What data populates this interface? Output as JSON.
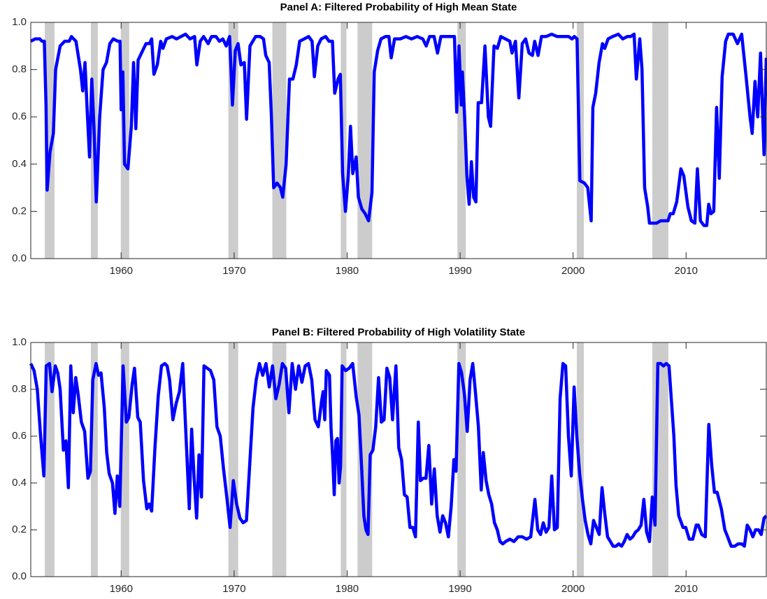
{
  "chart_data": [
    {
      "type": "line",
      "title": "Panel A: Filtered Probability of High Mean State",
      "color": "#0000ff",
      "xlim": [
        1952,
        2017.1
      ],
      "ylim": [
        0,
        1
      ],
      "xticks": [
        1960,
        1970,
        1980,
        1990,
        2000,
        2010
      ],
      "yticks": [
        {
          "value": 0,
          "label": "0.0"
        },
        0.2,
        0.4,
        0.6,
        0.8,
        {
          "value": 1,
          "label": "1.0"
        }
      ],
      "grid": false,
      "shading": {
        "color": "#cccccc",
        "ranges": [
          [
            1953.24,
            1954.1
          ],
          [
            1957.32,
            1957.93
          ],
          [
            1959.97,
            1960.71
          ],
          [
            1969.49,
            1970.36
          ],
          [
            1973.38,
            1974.62
          ],
          [
            1979.44,
            1979.94
          ],
          [
            1980.92,
            1982.22
          ],
          [
            1989.76,
            1990.5
          ],
          [
            2000.33,
            2000.95
          ],
          [
            2007.01,
            2008.43
          ]
        ]
      },
      "x": [
        1952.0,
        1952.4,
        1952.8,
        1953.0,
        1953.2,
        1953.35,
        1953.45,
        1953.7,
        1954.0,
        1954.2,
        1954.6,
        1955.0,
        1955.4,
        1955.6,
        1956.0,
        1956.4,
        1956.6,
        1956.8,
        1957.0,
        1957.2,
        1957.4,
        1957.6,
        1957.8,
        1958.1,
        1958.4,
        1958.7,
        1959.0,
        1959.3,
        1959.7,
        1959.9,
        1960.0,
        1960.15,
        1960.3,
        1960.6,
        1960.9,
        1961.1,
        1961.3,
        1961.5,
        1961.9,
        1962.2,
        1962.5,
        1962.7,
        1962.9,
        1963.2,
        1963.5,
        1963.7,
        1964.0,
        1964.5,
        1964.9,
        1965.3,
        1965.7,
        1966.1,
        1966.5,
        1966.7,
        1967.0,
        1967.3,
        1967.7,
        1968.0,
        1968.4,
        1968.7,
        1969.0,
        1969.3,
        1969.6,
        1969.85,
        1970.1,
        1970.35,
        1970.6,
        1970.9,
        1971.1,
        1971.4,
        1971.9,
        1972.3,
        1972.6,
        1972.8,
        1973.1,
        1973.3,
        1973.5,
        1973.8,
        1974.1,
        1974.3,
        1974.6,
        1974.9,
        1975.2,
        1975.5,
        1975.8,
        1976.2,
        1976.6,
        1976.9,
        1977.1,
        1977.4,
        1977.7,
        1978.1,
        1978.4,
        1978.7,
        1978.9,
        1979.2,
        1979.4,
        1979.6,
        1979.85,
        1980.1,
        1980.3,
        1980.5,
        1980.8,
        1981.0,
        1981.3,
        1981.6,
        1981.9,
        1982.2,
        1982.4,
        1982.7,
        1983.0,
        1983.4,
        1983.7,
        1983.9,
        1984.2,
        1984.7,
        1985.2,
        1985.7,
        1986.2,
        1986.7,
        1987.0,
        1987.3,
        1987.7,
        1988.0,
        1988.3,
        1988.8,
        1989.2,
        1989.5,
        1989.7,
        1989.9,
        1990.1,
        1990.2,
        1990.4,
        1990.6,
        1990.8,
        1991.0,
        1991.2,
        1991.4,
        1991.6,
        1991.9,
        1992.2,
        1992.5,
        1992.7,
        1993.0,
        1993.3,
        1993.6,
        1994.0,
        1994.4,
        1994.6,
        1994.9,
        1995.2,
        1995.5,
        1995.8,
        1996.1,
        1996.4,
        1996.6,
        1996.9,
        1997.2,
        1997.6,
        1998.1,
        1998.6,
        1999.1,
        1999.6,
        1999.9,
        2000.1,
        2000.35,
        2000.6,
        2001.0,
        2001.3,
        2001.6,
        2001.75,
        2002.0,
        2002.3,
        2002.6,
        2002.8,
        2003.1,
        2003.5,
        2004.0,
        2004.4,
        2004.8,
        2005.1,
        2005.4,
        2005.6,
        2005.9,
        2006.1,
        2006.33,
        2006.6,
        2006.76,
        2007.07,
        2007.38,
        2007.75,
        2008.1,
        2008.4,
        2008.6,
        2008.86,
        2009.17,
        2009.54,
        2009.8,
        2010.16,
        2010.47,
        2010.78,
        2011.0,
        2011.27,
        2011.58,
        2011.83,
        2012.0,
        2012.2,
        2012.45,
        2012.7,
        2012.94,
        2013.19,
        2013.5,
        2013.74,
        2014.17,
        2014.55,
        2014.92,
        2015.29,
        2015.66,
        2015.85,
        2016.1,
        2016.34,
        2016.59,
        2016.9,
        2017.1
      ],
      "values": [
        0.92,
        0.93,
        0.93,
        0.92,
        0.92,
        0.65,
        0.29,
        0.45,
        0.53,
        0.8,
        0.9,
        0.92,
        0.92,
        0.94,
        0.92,
        0.8,
        0.71,
        0.83,
        0.62,
        0.43,
        0.76,
        0.55,
        0.24,
        0.6,
        0.8,
        0.83,
        0.91,
        0.93,
        0.92,
        0.92,
        0.63,
        0.79,
        0.4,
        0.38,
        0.56,
        0.83,
        0.55,
        0.84,
        0.88,
        0.91,
        0.91,
        0.93,
        0.78,
        0.82,
        0.92,
        0.89,
        0.93,
        0.94,
        0.93,
        0.94,
        0.95,
        0.93,
        0.94,
        0.82,
        0.92,
        0.94,
        0.91,
        0.94,
        0.94,
        0.92,
        0.93,
        0.9,
        0.94,
        0.65,
        0.88,
        0.91,
        0.82,
        0.83,
        0.59,
        0.9,
        0.94,
        0.94,
        0.93,
        0.86,
        0.83,
        0.6,
        0.3,
        0.32,
        0.3,
        0.26,
        0.4,
        0.76,
        0.76,
        0.82,
        0.92,
        0.93,
        0.94,
        0.92,
        0.77,
        0.9,
        0.93,
        0.94,
        0.92,
        0.92,
        0.7,
        0.76,
        0.78,
        0.36,
        0.2,
        0.35,
        0.56,
        0.36,
        0.43,
        0.26,
        0.21,
        0.19,
        0.16,
        0.28,
        0.79,
        0.88,
        0.93,
        0.94,
        0.94,
        0.85,
        0.93,
        0.93,
        0.94,
        0.93,
        0.94,
        0.93,
        0.9,
        0.94,
        0.94,
        0.87,
        0.94,
        0.94,
        0.94,
        0.94,
        0.62,
        0.9,
        0.65,
        0.79,
        0.6,
        0.35,
        0.23,
        0.41,
        0.26,
        0.24,
        0.66,
        0.66,
        0.9,
        0.6,
        0.56,
        0.9,
        0.89,
        0.94,
        0.93,
        0.92,
        0.87,
        0.92,
        0.68,
        0.91,
        0.93,
        0.87,
        0.86,
        0.92,
        0.86,
        0.94,
        0.94,
        0.95,
        0.94,
        0.94,
        0.94,
        0.93,
        0.94,
        0.93,
        0.33,
        0.32,
        0.3,
        0.16,
        0.64,
        0.7,
        0.83,
        0.91,
        0.89,
        0.93,
        0.94,
        0.95,
        0.93,
        0.94,
        0.94,
        0.95,
        0.76,
        0.93,
        0.8,
        0.3,
        0.22,
        0.15,
        0.15,
        0.15,
        0.16,
        0.16,
        0.16,
        0.19,
        0.19,
        0.24,
        0.38,
        0.35,
        0.22,
        0.16,
        0.15,
        0.38,
        0.16,
        0.14,
        0.14,
        0.23,
        0.19,
        0.2,
        0.64,
        0.34,
        0.77,
        0.92,
        0.95,
        0.95,
        0.91,
        0.95,
        0.78,
        0.6,
        0.53,
        0.75,
        0.6,
        0.87,
        0.44,
        0.85
      ]
    },
    {
      "type": "line",
      "title": "Panel B: Filtered Probability of High Volatility State",
      "color": "#0000ff",
      "xlim": [
        1952,
        2017.1
      ],
      "ylim": [
        0,
        1
      ],
      "xticks": [
        1960,
        1970,
        1980,
        1990,
        2000,
        2010
      ],
      "yticks": [
        {
          "value": 0,
          "label": "0.0"
        },
        0.2,
        0.4,
        0.6,
        0.8,
        {
          "value": 1,
          "label": "1.0"
        }
      ],
      "grid": false,
      "shading": {
        "color": "#cccccc",
        "ranges": [
          [
            1953.24,
            1954.1
          ],
          [
            1957.32,
            1957.93
          ],
          [
            1959.97,
            1960.71
          ],
          [
            1969.49,
            1970.36
          ],
          [
            1973.38,
            1974.62
          ],
          [
            1979.44,
            1979.94
          ],
          [
            1980.92,
            1982.22
          ],
          [
            1989.76,
            1990.5
          ],
          [
            2000.33,
            2000.95
          ],
          [
            2007.01,
            2008.43
          ]
        ]
      },
      "x": [
        1952.0,
        1952.29,
        1952.58,
        1952.87,
        1953.16,
        1953.37,
        1953.66,
        1953.88,
        1954.17,
        1954.39,
        1954.6,
        1954.89,
        1955.11,
        1955.33,
        1955.54,
        1955.76,
        1955.98,
        1956.19,
        1956.48,
        1956.77,
        1957.06,
        1957.28,
        1957.49,
        1957.78,
        1958.0,
        1958.22,
        1958.51,
        1958.72,
        1958.94,
        1959.23,
        1959.45,
        1959.66,
        1959.88,
        1960.17,
        1960.46,
        1960.68,
        1960.97,
        1961.18,
        1961.47,
        1961.69,
        1961.98,
        1962.27,
        1962.48,
        1962.7,
        1962.99,
        1963.28,
        1963.57,
        1963.86,
        1964.07,
        1964.29,
        1964.58,
        1964.87,
        1965.16,
        1965.45,
        1965.74,
        1966.03,
        1966.24,
        1966.46,
        1966.68,
        1966.89,
        1967.11,
        1967.33,
        1967.62,
        1967.91,
        1968.2,
        1968.48,
        1968.77,
        1969.06,
        1969.35,
        1969.64,
        1969.93,
        1970.22,
        1970.51,
        1970.8,
        1971.09,
        1971.38,
        1971.67,
        1971.95,
        1972.24,
        1972.53,
        1972.82,
        1973.11,
        1973.4,
        1973.69,
        1973.98,
        1974.27,
        1974.56,
        1974.85,
        1975.14,
        1975.43,
        1975.71,
        1976.0,
        1976.29,
        1976.58,
        1976.87,
        1977.16,
        1977.45,
        1977.74,
        1977.88,
        1978.02,
        1978.16,
        1978.3,
        1978.44,
        1978.58,
        1978.72,
        1978.86,
        1979.0,
        1979.14,
        1979.29,
        1979.42,
        1979.56,
        1979.87,
        1980.18,
        1980.49,
        1980.8,
        1981.05,
        1981.3,
        1981.48,
        1981.67,
        1981.85,
        1982.04,
        1982.28,
        1982.53,
        1982.78,
        1983.03,
        1983.27,
        1983.52,
        1983.77,
        1984.02,
        1984.32,
        1984.57,
        1984.82,
        1985.07,
        1985.31,
        1985.56,
        1985.81,
        1986.05,
        1986.3,
        1986.49,
        1986.73,
        1986.98,
        1987.23,
        1987.48,
        1987.72,
        1987.97,
        1988.22,
        1988.46,
        1988.71,
        1988.96,
        1989.21,
        1989.45,
        1989.64,
        1989.89,
        1990.13,
        1990.38,
        1990.63,
        1990.88,
        1991.12,
        1991.37,
        1991.62,
        1991.87,
        1992.05,
        1992.3,
        1992.54,
        1992.79,
        1993.04,
        1993.29,
        1993.53,
        1993.78,
        1994.03,
        1994.4,
        1994.77,
        1995.14,
        1995.51,
        1995.88,
        1996.25,
        1996.62,
        1996.87,
        1997.12,
        1997.36,
        1997.61,
        1997.86,
        1998.11,
        1998.35,
        1998.6,
        1998.85,
        1999.1,
        1999.34,
        1999.59,
        1999.84,
        2000.09,
        2000.33,
        2000.58,
        2000.83,
        2001.07,
        2001.32,
        2001.57,
        2001.81,
        2002.06,
        2002.31,
        2002.56,
        2002.8,
        2003.05,
        2003.3,
        2003.54,
        2003.79,
        2004.04,
        2004.29,
        2004.53,
        2004.78,
        2005.03,
        2005.28,
        2005.52,
        2005.77,
        2006.02,
        2006.26,
        2006.51,
        2006.76,
        2007.01,
        2007.25,
        2007.5,
        2007.75,
        2008.0,
        2008.24,
        2008.49,
        2008.92,
        2009.11,
        2009.35,
        2009.73,
        2009.97,
        2010.28,
        2010.59,
        2010.9,
        2011.08,
        2011.39,
        2011.7,
        2012.01,
        2012.26,
        2012.51,
        2012.75,
        2013.12,
        2013.43,
        2013.68,
        2013.99,
        2014.3,
        2014.61,
        2014.92,
        2015.16,
        2015.41,
        2015.66,
        2015.91,
        2016.15,
        2016.4,
        2016.65,
        2016.9,
        2017.1
      ],
      "values": [
        0.91,
        0.88,
        0.8,
        0.6,
        0.43,
        0.9,
        0.91,
        0.79,
        0.9,
        0.87,
        0.8,
        0.54,
        0.58,
        0.38,
        0.9,
        0.7,
        0.85,
        0.78,
        0.66,
        0.62,
        0.42,
        0.45,
        0.84,
        0.91,
        0.86,
        0.87,
        0.72,
        0.53,
        0.44,
        0.4,
        0.27,
        0.43,
        0.3,
        0.9,
        0.66,
        0.68,
        0.82,
        0.89,
        0.68,
        0.66,
        0.41,
        0.29,
        0.31,
        0.28,
        0.55,
        0.77,
        0.9,
        0.91,
        0.9,
        0.84,
        0.67,
        0.74,
        0.79,
        0.91,
        0.6,
        0.29,
        0.63,
        0.42,
        0.25,
        0.52,
        0.34,
        0.9,
        0.89,
        0.88,
        0.84,
        0.64,
        0.6,
        0.46,
        0.34,
        0.21,
        0.41,
        0.31,
        0.25,
        0.23,
        0.24,
        0.48,
        0.72,
        0.84,
        0.91,
        0.86,
        0.91,
        0.81,
        0.9,
        0.76,
        0.82,
        0.91,
        0.89,
        0.7,
        0.91,
        0.8,
        0.9,
        0.83,
        0.9,
        0.91,
        0.84,
        0.67,
        0.64,
        0.75,
        0.79,
        0.67,
        0.88,
        0.87,
        0.86,
        0.63,
        0.51,
        0.35,
        0.58,
        0.59,
        0.4,
        0.47,
        0.9,
        0.88,
        0.89,
        0.91,
        0.77,
        0.69,
        0.45,
        0.26,
        0.2,
        0.18,
        0.52,
        0.54,
        0.64,
        0.85,
        0.66,
        0.67,
        0.89,
        0.85,
        0.67,
        0.9,
        0.55,
        0.5,
        0.35,
        0.34,
        0.21,
        0.21,
        0.17,
        0.66,
        0.41,
        0.42,
        0.42,
        0.56,
        0.31,
        0.46,
        0.26,
        0.19,
        0.26,
        0.23,
        0.17,
        0.3,
        0.5,
        0.45,
        0.91,
        0.87,
        0.78,
        0.62,
        0.84,
        0.91,
        0.78,
        0.64,
        0.37,
        0.53,
        0.41,
        0.35,
        0.31,
        0.23,
        0.2,
        0.15,
        0.14,
        0.15,
        0.16,
        0.15,
        0.17,
        0.17,
        0.16,
        0.17,
        0.33,
        0.2,
        0.18,
        0.23,
        0.19,
        0.21,
        0.43,
        0.2,
        0.21,
        0.76,
        0.91,
        0.9,
        0.6,
        0.43,
        0.81,
        0.6,
        0.44,
        0.33,
        0.24,
        0.18,
        0.14,
        0.24,
        0.21,
        0.18,
        0.38,
        0.27,
        0.17,
        0.15,
        0.13,
        0.13,
        0.14,
        0.13,
        0.15,
        0.18,
        0.16,
        0.17,
        0.19,
        0.2,
        0.22,
        0.33,
        0.19,
        0.15,
        0.34,
        0.22,
        0.91,
        0.91,
        0.9,
        0.91,
        0.9,
        0.6,
        0.39,
        0.26,
        0.21,
        0.21,
        0.16,
        0.16,
        0.22,
        0.22,
        0.18,
        0.17,
        0.65,
        0.48,
        0.36,
        0.36,
        0.29,
        0.2,
        0.17,
        0.13,
        0.13,
        0.14,
        0.14,
        0.13,
        0.22,
        0.2,
        0.17,
        0.2,
        0.2,
        0.18,
        0.25,
        0.26
      ]
    }
  ]
}
